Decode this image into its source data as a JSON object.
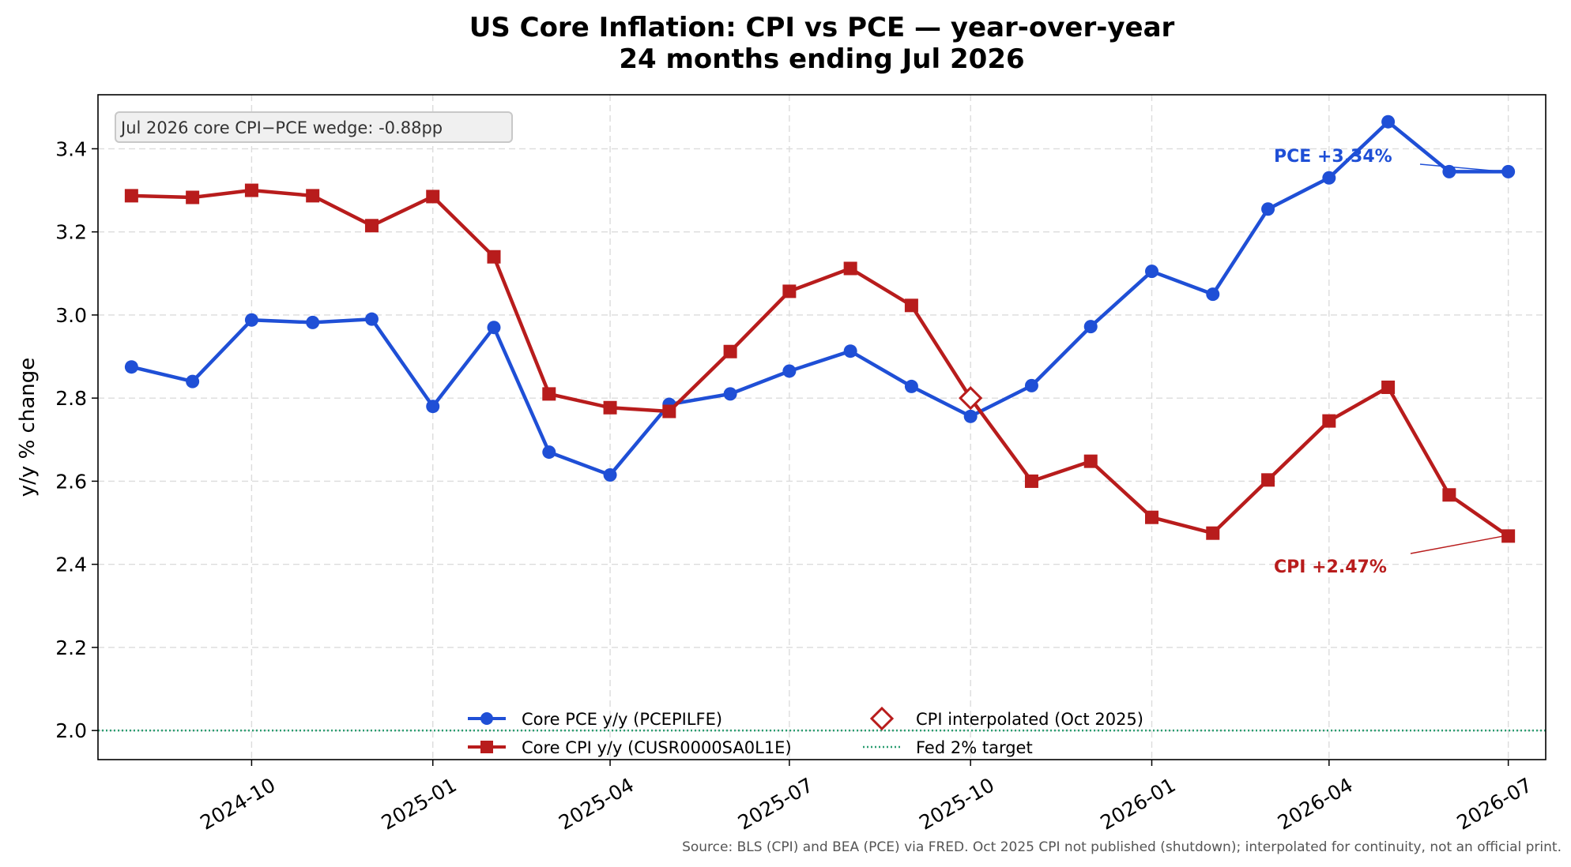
{
  "chart_data": {
    "type": "line",
    "title": "US Core Inflation: CPI vs PCE — year-over-year",
    "subtitle": "24 months ending Jul 2026",
    "xlabel": "",
    "ylabel": "y/y % change",
    "x_ticks": [
      "2024-10",
      "2025-01",
      "2025-04",
      "2025-07",
      "2025-10",
      "2026-01",
      "2026-04",
      "2026-07"
    ],
    "y_ticks": [
      "2.0",
      "2.2",
      "2.4",
      "2.6",
      "2.8",
      "3.0",
      "3.2",
      "3.4"
    ],
    "ylim": [
      1.93,
      3.53
    ],
    "xlim": [
      "2024-07-15",
      "2026-07-20"
    ],
    "grid": true,
    "x": [
      "2024-08",
      "2024-09",
      "2024-10",
      "2024-11",
      "2024-12",
      "2025-01",
      "2025-02",
      "2025-03",
      "2025-04",
      "2025-05",
      "2025-06",
      "2025-07",
      "2025-08",
      "2025-09",
      "2025-10",
      "2025-11",
      "2025-12",
      "2026-01",
      "2026-02",
      "2026-03",
      "2026-04",
      "2026-05",
      "2026-06",
      "2026-07"
    ],
    "series": [
      {
        "name": "Core PCE y/y (PCEPILFE)",
        "color": "#1f4fd6",
        "marker": "circle",
        "values": [
          2.875,
          2.84,
          2.988,
          2.982,
          2.99,
          2.78,
          2.97,
          2.67,
          2.615,
          2.785,
          2.81,
          2.865,
          2.913,
          2.828,
          2.756,
          2.83,
          2.972,
          3.105,
          3.05,
          3.255,
          3.33,
          3.465,
          3.345,
          3.345
        ]
      },
      {
        "name": "Core CPI y/y (CUSR0000SA0L1E)",
        "color": "#b81c1c",
        "marker": "square",
        "values": [
          3.287,
          3.283,
          3.3,
          3.287,
          3.215,
          3.285,
          3.14,
          2.81,
          2.777,
          2.768,
          2.912,
          3.057,
          3.112,
          3.023,
          null,
          2.6,
          2.648,
          2.513,
          2.475,
          2.603,
          2.745,
          2.826,
          2.567,
          2.468
        ]
      }
    ],
    "interpolated": {
      "name": "CPI interpolated (Oct 2025)",
      "x": "2025-10",
      "value": 2.8,
      "color": "#b81c1c",
      "marker": "diamond-open"
    },
    "reference_line": {
      "name": "Fed 2% target",
      "value": 2.0,
      "color": "#2a9d70",
      "style": "dotted"
    },
    "annotations": [
      {
        "text": "PCE +3.34%",
        "series": 0,
        "color": "#1f4fd6"
      },
      {
        "text": "CPI +2.47%",
        "series": 1,
        "color": "#b81c1c"
      }
    ],
    "info_box": "Jul 2026 core CPI−PCE wedge: -0.88pp",
    "legend_position": "bottom-center",
    "source_note": "Source: BLS (CPI) and BEA (PCE) via FRED.  Oct 2025 CPI not published (shutdown); interpolated for continuity, not an official print."
  }
}
